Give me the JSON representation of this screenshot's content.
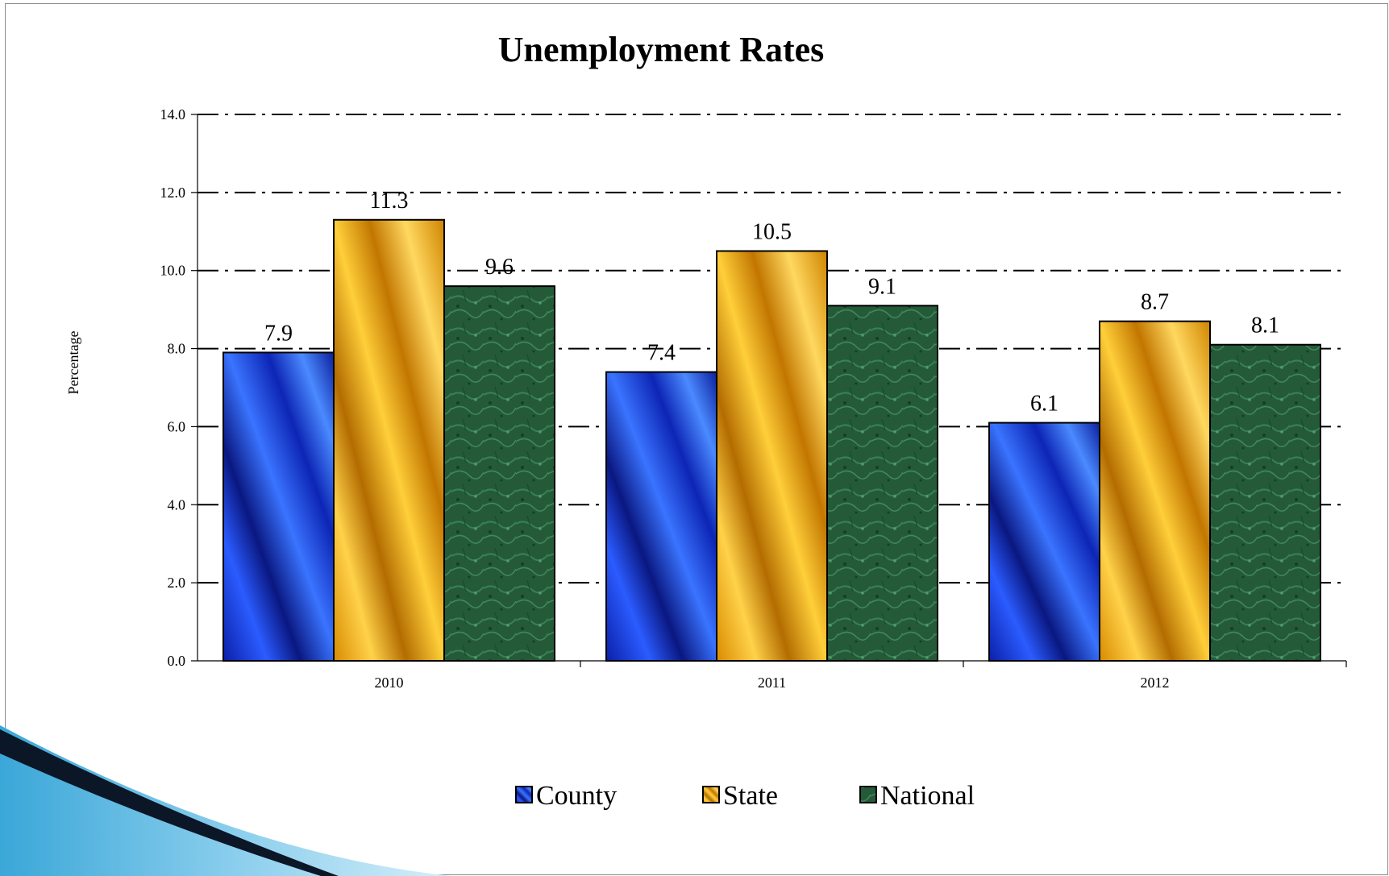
{
  "chart_data": {
    "type": "bar",
    "title": "Unemployment Rates",
    "xlabel": "",
    "ylabel": "Percentage",
    "categories": [
      "2010",
      "2011",
      "2012"
    ],
    "series": [
      {
        "name": "County",
        "values": [
          7.9,
          7.4,
          6.1
        ],
        "color": "#1a3de0"
      },
      {
        "name": "State",
        "values": [
          11.3,
          10.5,
          8.7
        ],
        "color": "#f0a500"
      },
      {
        "name": "National",
        "values": [
          9.6,
          9.1,
          8.1
        ],
        "color": "#2d6b45"
      }
    ],
    "ylim": [
      0,
      14
    ],
    "yticks": [
      0,
      2,
      4,
      6,
      8,
      10,
      12,
      14
    ],
    "ytick_labels": [
      "0.0",
      "2.0",
      "4.0",
      "6.0",
      "8.0",
      "10.0",
      "12.0",
      "14.0"
    ],
    "data_labels": [
      [
        "7.9",
        "7.4",
        "6.1"
      ],
      [
        "11.3",
        "10.5",
        "8.7"
      ],
      [
        "9.6",
        "9.1",
        "8.1"
      ]
    ],
    "grid": true,
    "grid_style": "dash-dot",
    "legend_position": "bottom-center"
  },
  "colors": {
    "county": "#1a3de0",
    "state": "#f0a500",
    "national": "#2d6b45",
    "corner_accent": "#3aa7d8"
  }
}
